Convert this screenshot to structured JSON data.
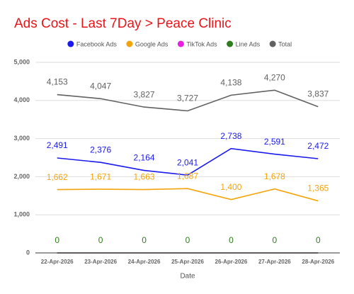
{
  "chart_data": {
    "type": "line",
    "title": "Ads Cost - Last 7Day > Peace Clinic",
    "x_label": "Date",
    "categories": [
      "22-Apr-2026",
      "23-Apr-2026",
      "24-Apr-2026",
      "25-Apr-2026",
      "26-Apr-2026",
      "27-Apr-2026",
      "28-Apr-2026"
    ],
    "series": [
      {
        "name": "Facebook Ads",
        "color": "#1a1aee",
        "show_labels": true,
        "values": [
          2491,
          2376,
          2164,
          2041,
          2738,
          2591,
          2472
        ],
        "value_labels": [
          "2,491",
          "2,376",
          "2,164",
          "2,041",
          "2,738",
          "2,591",
          "2,472"
        ]
      },
      {
        "name": "Google Ads",
        "color": "#f4a40b",
        "show_labels": true,
        "values": [
          1662,
          1671,
          1663,
          1687,
          1400,
          1678,
          1365
        ],
        "value_labels": [
          "1,662",
          "1,671",
          "1,663",
          "1,687",
          "1,400",
          "1,678",
          "1,365"
        ]
      },
      {
        "name": "TikTok Ads",
        "color": "#e91ee0",
        "show_labels": false,
        "values": [
          0,
          0,
          0,
          0,
          0,
          0,
          0
        ]
      },
      {
        "name": "Line Ads",
        "color": "#2e7d1e",
        "show_labels": true,
        "values": [
          0,
          0,
          0,
          0,
          0,
          0,
          0
        ]
      },
      {
        "name": "Total",
        "color": "#616161",
        "show_labels": true,
        "values": [
          4153,
          4047,
          3827,
          3727,
          4138,
          4270,
          3837
        ],
        "value_labels": [
          "4,153",
          "4,047",
          "3,827",
          "3,727",
          "4,138",
          "4,270",
          "3,837"
        ]
      }
    ],
    "ylim": [
      0,
      5000
    ],
    "yticks": [
      0,
      {
        "value": 1000,
        "label": "1,000"
      },
      {
        "value": 2000,
        "label": "2,000"
      },
      {
        "value": 3000,
        "label": "3,000"
      },
      {
        "value": 4000,
        "label": "4,000"
      },
      {
        "value": 5000,
        "label": "5,000"
      }
    ],
    "grid": true,
    "legend": "top"
  }
}
